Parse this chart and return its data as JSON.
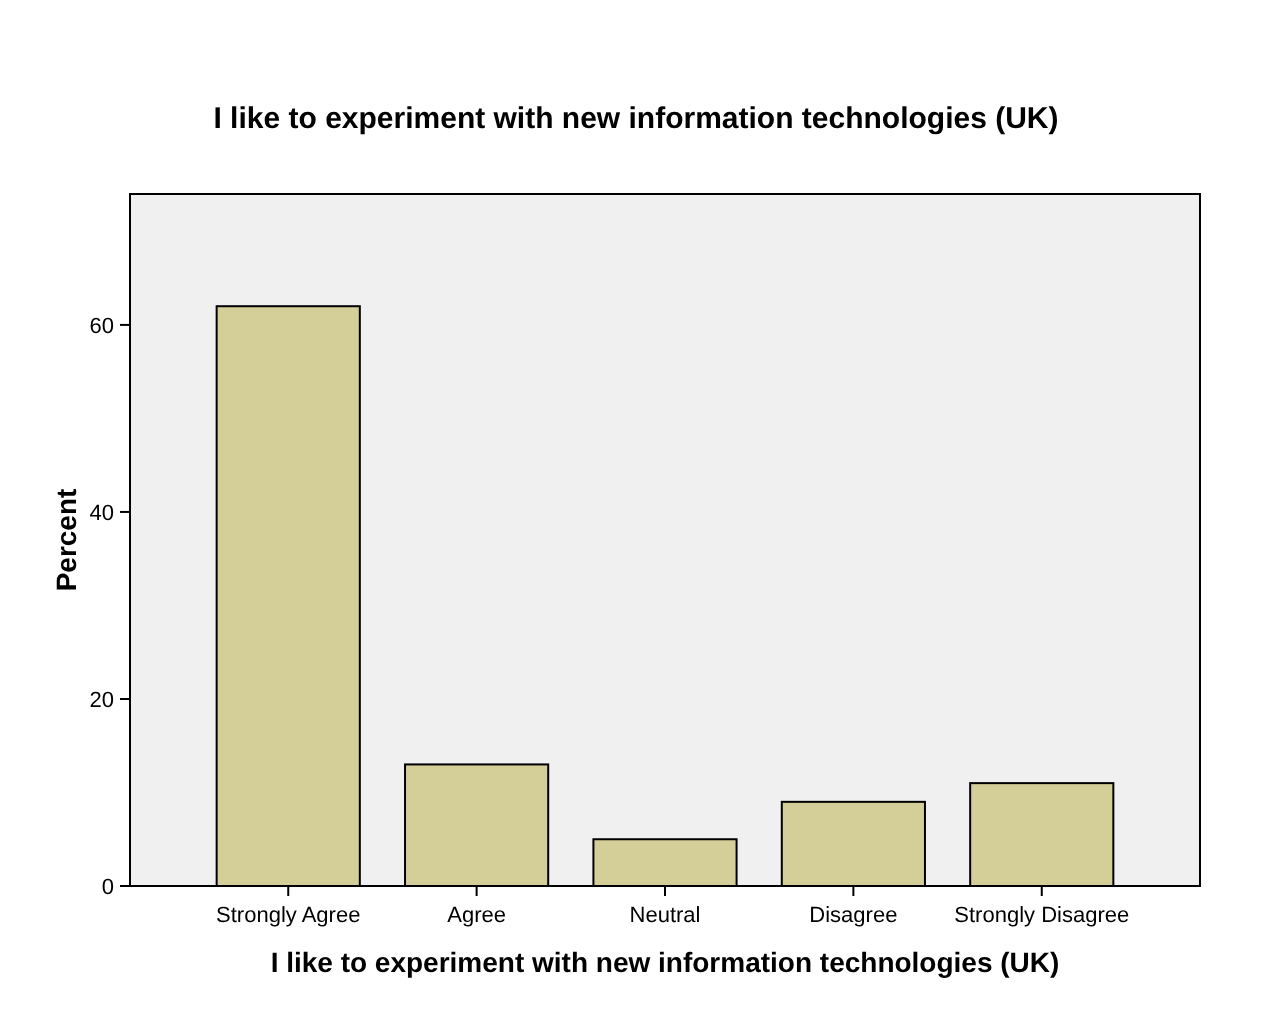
{
  "chart_data": {
    "type": "bar",
    "title": "I like to experiment with new information technologies (UK)",
    "xlabel": "I like to experiment with new information technologies (UK)",
    "ylabel": "Percent",
    "categories": [
      "Strongly Agree",
      "Agree",
      "Neutral",
      "Disagree",
      "Strongly Disagree"
    ],
    "values": [
      62,
      13,
      5,
      9,
      11
    ],
    "color": "#d4cf98",
    "ylim": [
      0,
      74
    ],
    "yticks": [
      0,
      20,
      40,
      60
    ],
    "grid": false
  }
}
